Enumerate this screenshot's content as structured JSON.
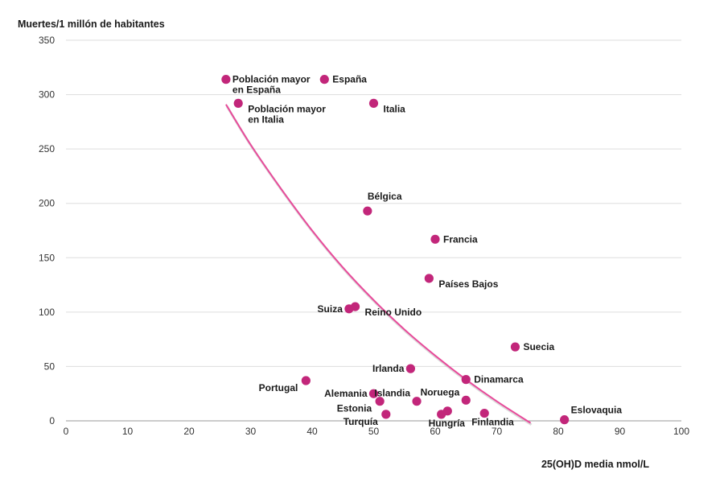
{
  "chart_data": {
    "type": "scatter",
    "title": "",
    "ylabel": "Muertes/1 millón de habitantes",
    "xlabel": "25(OH)D media nmol/L",
    "xlim": [
      0,
      100
    ],
    "ylim": [
      0,
      350
    ],
    "x_ticks": [
      0,
      10,
      20,
      30,
      40,
      50,
      60,
      70,
      80,
      90,
      100
    ],
    "y_ticks": [
      0,
      50,
      100,
      150,
      200,
      250,
      300,
      350
    ],
    "grid": "horizontal",
    "marker_color": "#c2267a",
    "trend_color": "#e84a9a",
    "points": [
      {
        "name": "Población mayor en España",
        "lines": [
          "Población mayor",
          "en España"
        ],
        "x": 26,
        "y": 314,
        "label_pos": "right-top"
      },
      {
        "name": "Población mayor en Italia",
        "lines": [
          "Población mayor",
          "en Italia"
        ],
        "x": 28,
        "y": 292,
        "label_pos": "right-below"
      },
      {
        "name": "España",
        "lines": [
          "España"
        ],
        "x": 42,
        "y": 314,
        "label_pos": "right"
      },
      {
        "name": "Italia",
        "lines": [
          "Italia"
        ],
        "x": 50,
        "y": 292,
        "label_pos": "right-below"
      },
      {
        "name": "Bélgica",
        "lines": [
          "Bélgica"
        ],
        "x": 49,
        "y": 193,
        "label_pos": "above"
      },
      {
        "name": "Francia",
        "lines": [
          "Francia"
        ],
        "x": 60,
        "y": 167,
        "label_pos": "right"
      },
      {
        "name": "Países Bajos",
        "lines": [
          "Países Bajos"
        ],
        "x": 59,
        "y": 131,
        "label_pos": "right-below"
      },
      {
        "name": "Suiza",
        "lines": [
          "Suiza"
        ],
        "x": 46,
        "y": 103,
        "label_pos": "left"
      },
      {
        "name": "Reino Unido",
        "lines": [
          "Reino Unido"
        ],
        "x": 47,
        "y": 105,
        "label_pos": "right-below"
      },
      {
        "name": "Suecia",
        "lines": [
          "Suecia"
        ],
        "x": 73,
        "y": 68,
        "label_pos": "right"
      },
      {
        "name": "Irlanda",
        "lines": [
          "Irlanda"
        ],
        "x": 56,
        "y": 48,
        "label_pos": "left"
      },
      {
        "name": "Dinamarca",
        "lines": [
          "Dinamarca"
        ],
        "x": 65,
        "y": 38,
        "label_pos": "right"
      },
      {
        "name": "Portugal",
        "lines": [
          "Portugal"
        ],
        "x": 39,
        "y": 37,
        "label_pos": "left-below"
      },
      {
        "name": "Alemania",
        "lines": [
          "Alemania"
        ],
        "x": 50,
        "y": 25,
        "label_pos": "left"
      },
      {
        "name": "Islandia",
        "lines": [
          "Islandia"
        ],
        "x": 57,
        "y": 18,
        "label_pos": "left-above"
      },
      {
        "name": "Estonia",
        "lines": [
          "Estonia"
        ],
        "x": 51,
        "y": 18,
        "label_pos": "left-below"
      },
      {
        "name": "Turquía",
        "lines": [
          "Turquía"
        ],
        "x": 52,
        "y": 6,
        "label_pos": "left-below"
      },
      {
        "name": "Noruega",
        "lines": [
          "Noruega"
        ],
        "x": 65,
        "y": 19,
        "label_pos": "left-above"
      },
      {
        "name": "Hungría",
        "lines": [
          "Hungría"
        ],
        "x": 61,
        "y": 6,
        "label_pos": "below"
      },
      {
        "name": "Hungría (2)",
        "lines": [],
        "x": 62,
        "y": 9,
        "label_pos": "none"
      },
      {
        "name": "Finlandia",
        "lines": [
          "Finlandia"
        ],
        "x": 68,
        "y": 7,
        "label_pos": "below"
      },
      {
        "name": "Eslovaquia",
        "lines": [
          "Eslovaquia"
        ],
        "x": 81,
        "y": 1,
        "label_pos": "right-above"
      }
    ],
    "trendline": {
      "type": "exponential",
      "x": [
        26,
        30,
        35,
        40,
        45,
        50,
        55,
        60,
        65,
        70,
        75.5
      ],
      "y": [
        291,
        254,
        213,
        175,
        141,
        111,
        84,
        60,
        38,
        18,
        -2
      ]
    }
  }
}
